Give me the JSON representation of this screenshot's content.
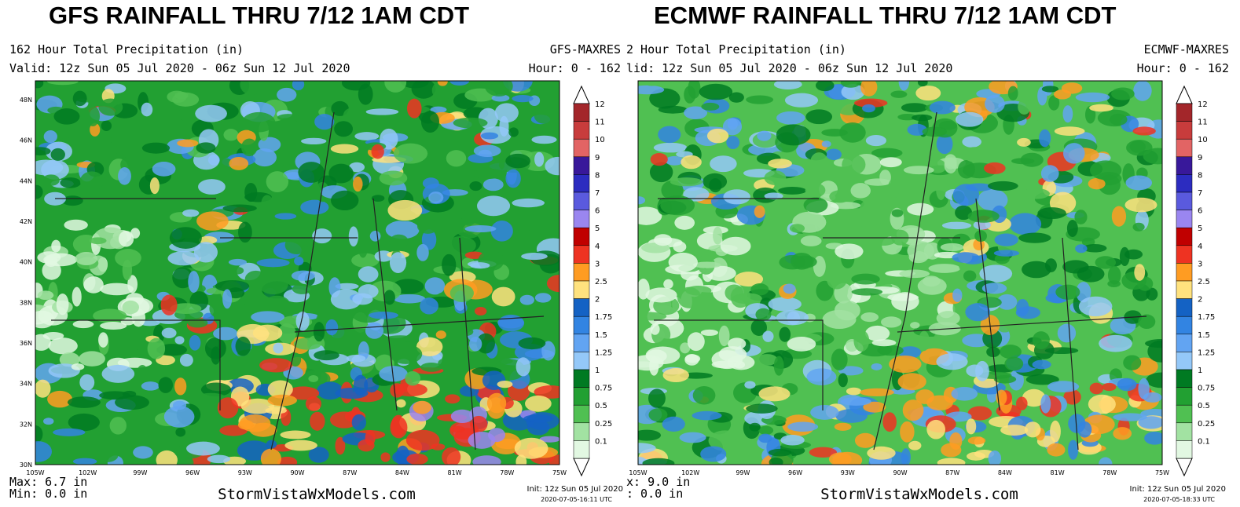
{
  "panels": [
    {
      "title": "GFS  RAINFALL THRU  7/12  1AM CDT",
      "product": "162 Hour Total Precipitation (in)",
      "model": "GFS-MAXRES",
      "valid": "Valid: 12z Sun 05 Jul 2020 - 06z Sun 12 Jul 2020",
      "hours": "Hour: 0 - 162",
      "lat_labels": [
        "48N",
        "46N",
        "44N",
        "42N",
        "40N",
        "38N",
        "36N",
        "34N",
        "32N",
        "30N"
      ],
      "lon_labels": [
        "105W",
        "102W",
        "99W",
        "96W",
        "93W",
        "90W",
        "87W",
        "84W",
        "81W",
        "78W",
        "75W"
      ],
      "legend_labels": [
        "12",
        "11",
        "10",
        "9",
        "8",
        "7",
        "6",
        "5",
        "4",
        "3",
        "2.5",
        "2",
        "1.75",
        "1.5",
        "1.25",
        "1",
        "0.75",
        "0.5",
        "0.25",
        "0.1"
      ],
      "max": "Max: 6.7 in",
      "min": "Min: 0.0 in",
      "credit": "StormVistaWxModels.com",
      "init": "Init: 12z Sun 05 Jul 2020",
      "timestamp": "2020-07-05-16:11 UTC"
    },
    {
      "title": "ECMWF  RAINFALL THRU  7/12  1AM CDT",
      "product": "2 Hour Total Precipitation (in)",
      "model": "ECMWF-MAXRES",
      "valid": "lid: 12z Sun 05 Jul 2020 - 06z Sun 12 Jul 2020",
      "hours": "Hour: 0 - 162",
      "lon_labels": [
        "105W",
        "102W",
        "99W",
        "96W",
        "93W",
        "90W",
        "87W",
        "84W",
        "81W",
        "78W",
        "75W"
      ],
      "legend_labels": [
        "12",
        "11",
        "10",
        "9",
        "8",
        "7",
        "6",
        "5",
        "4",
        "3",
        "2.5",
        "2",
        "1.75",
        "1.5",
        "1.25",
        "1",
        "0.75",
        "0.5",
        "0.25",
        "0.1"
      ],
      "max": "x: 9.0 in",
      "min": ": 0.0 in",
      "credit": "StormVistaWxModels.com",
      "init": "Init: 12z Sun 05 Jul 2020",
      "timestamp": "2020-07-05-18:33 UTC"
    }
  ]
}
